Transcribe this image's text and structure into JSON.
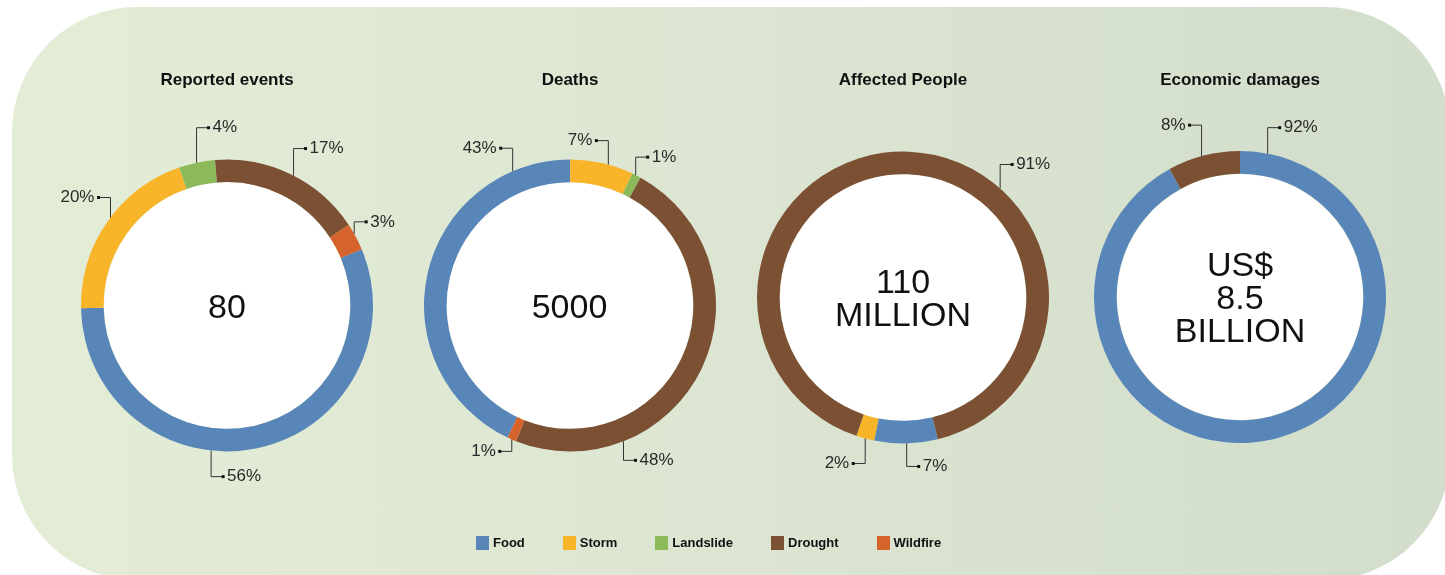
{
  "chart_data": [
    {
      "type": "donut",
      "title": "Reported events",
      "categories": [
        "Food",
        "Storm",
        "Landslide",
        "Drought",
        "Wildfire"
      ],
      "values": [
        56,
        20,
        4,
        17,
        3
      ],
      "colors": [
        "#5886b9",
        "#f9b52a",
        "#8cb95a",
        "#7b5033",
        "#d5632b"
      ],
      "value_labels": [
        "56%",
        "20%",
        "4%",
        "17%",
        "3%"
      ],
      "annotations": [
        "80"
      ],
      "legend": "bottom"
    },
    {
      "type": "donut",
      "title": "Deaths",
      "categories": [
        null,
        null,
        null,
        null,
        null
      ],
      "values": [
        43,
        7,
        1,
        48,
        1
      ],
      "colors": [
        "#5886b9",
        "#f9b52a",
        "#8cb95a",
        "#7b5033",
        "#d5632b"
      ],
      "value_labels": [
        "43%",
        "7%",
        "1%",
        "48%",
        "1%"
      ],
      "annotations": [
        "5000"
      ]
    },
    {
      "type": "donut",
      "title": "Affected People",
      "categories": [
        null,
        null,
        null
      ],
      "values": [
        7,
        2,
        91
      ],
      "colors": [
        "#5886b9",
        "#f9b52a",
        "#7b5033"
      ],
      "value_labels": [
        "7%",
        "2%",
        "91%"
      ],
      "annotations": [
        "110 MILLION"
      ]
    },
    {
      "type": "donut",
      "title": "Economic damages",
      "categories": [
        null,
        null
      ],
      "values": [
        92,
        8
      ],
      "colors": [
        "#5886b9",
        "#7b5033"
      ],
      "value_labels": [
        "92%",
        "8%"
      ],
      "annotations": [
        "US$ 8.5 BILLION"
      ]
    }
  ]
}
